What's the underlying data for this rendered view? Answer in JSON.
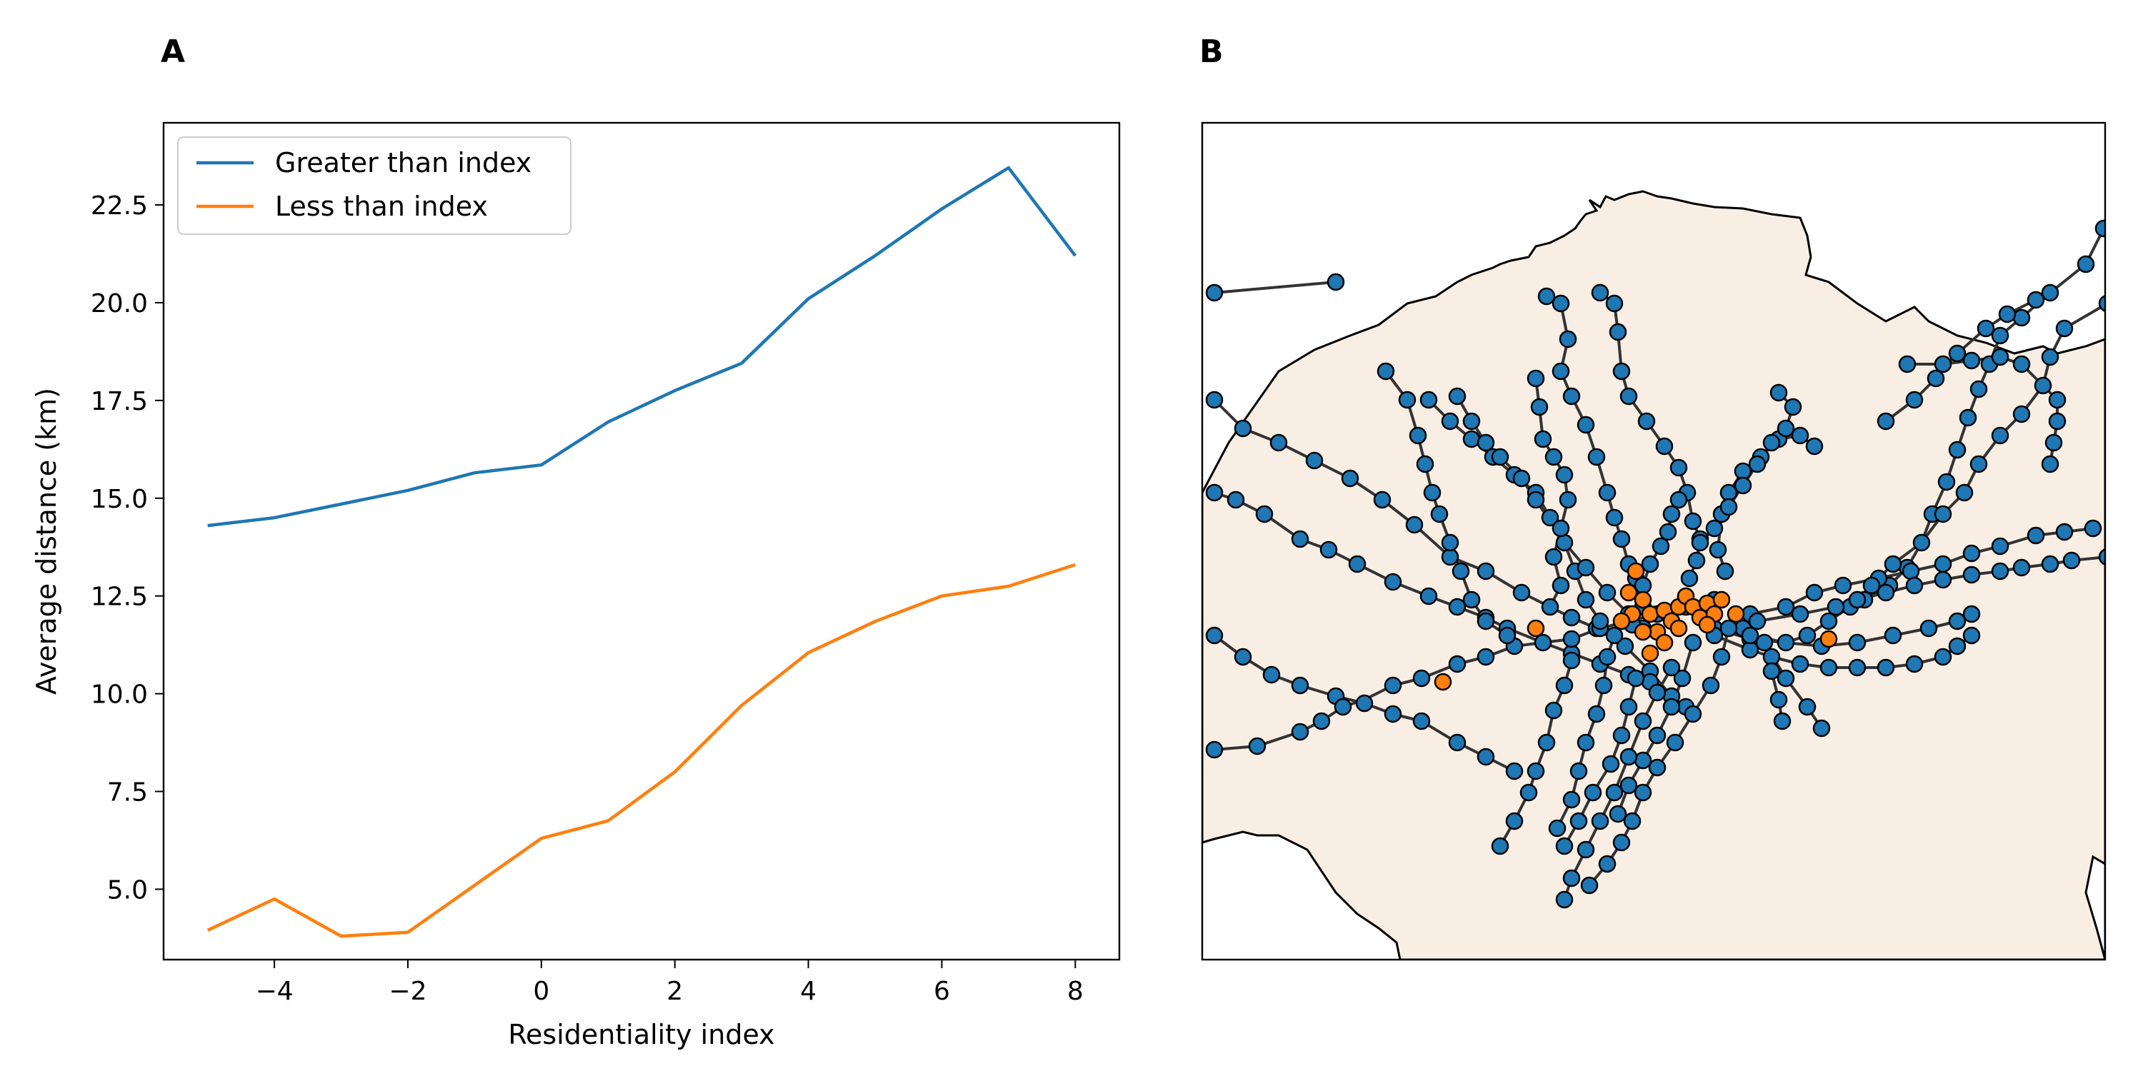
{
  "panels": {
    "a_label": "A",
    "b_label": "B"
  },
  "chart_data": [
    {
      "type": "line",
      "panel": "A",
      "title": "",
      "xlabel": "Residentiality index",
      "ylabel": "Average distance (km)",
      "xlim": [
        -5.66,
        8.66
      ],
      "ylim": [
        3.2,
        24.6
      ],
      "xticks": [
        -4,
        -2,
        0,
        2,
        4,
        6,
        8
      ],
      "xtick_labels": [
        "−4",
        "−2",
        "0",
        "2",
        "4",
        "6",
        "8"
      ],
      "yticks": [
        5.0,
        7.5,
        10.0,
        12.5,
        15.0,
        17.5,
        20.0,
        22.5
      ],
      "ytick_labels": [
        "5.0",
        "7.5",
        "10.0",
        "12.5",
        "15.0",
        "17.5",
        "20.0",
        "22.5"
      ],
      "grid": false,
      "legend_position": "top-left",
      "x": [
        -5,
        -4,
        -3,
        -2,
        -1,
        0,
        1,
        2,
        3,
        4,
        5,
        6,
        7,
        8
      ],
      "series": [
        {
          "name": "Greater than index",
          "color": "#1f77b4",
          "values": [
            14.3,
            14.5,
            14.85,
            15.2,
            15.65,
            15.85,
            16.95,
            17.75,
            18.45,
            20.1,
            21.2,
            22.4,
            23.45,
            21.2
          ]
        },
        {
          "name": "Less than index",
          "color": "#ff7f0e",
          "values": [
            3.95,
            4.75,
            3.8,
            3.9,
            5.1,
            6.3,
            6.75,
            8.0,
            9.7,
            11.05,
            11.85,
            12.5,
            12.75,
            13.3
          ]
        }
      ]
    },
    {
      "type": "map",
      "panel": "B",
      "land_color": "#f9eee4",
      "network_color": "#333333",
      "node_colors": {
        "default": "#1f77b4",
        "highlight": "#ff7f0e"
      }
    }
  ]
}
